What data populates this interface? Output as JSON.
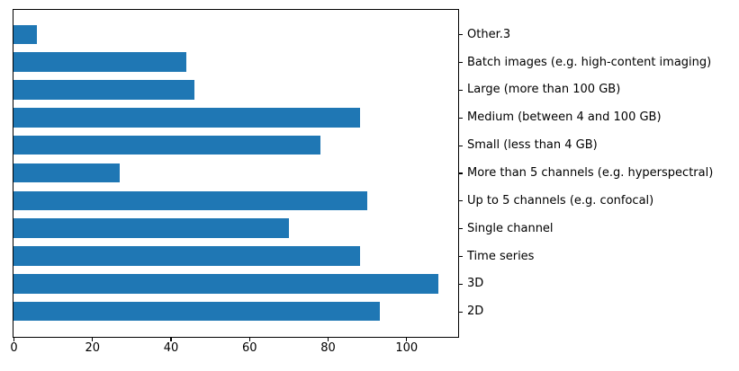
{
  "figure": {
    "background_color": "#ffffff",
    "spine_color": "#000000",
    "tick_color": "#000000",
    "text_color": "#000000"
  },
  "chart_data": {
    "type": "bar",
    "orientation": "horizontal",
    "order": "top-to-bottom",
    "categories": [
      "Other.3",
      "Batch images (e.g. high-content imaging)",
      "Large (more than 100 GB)",
      "Medium (between 4 and 100 GB)",
      "Small (less than 4 GB)",
      "More than 5 channels (e.g. hyperspectral)",
      "Up to 5 channels (e.g. confocal)",
      "Single channel",
      "Time series",
      "3D",
      "2D"
    ],
    "values": [
      6,
      44,
      46,
      88,
      78,
      27,
      90,
      70,
      88,
      108,
      93
    ],
    "title": "",
    "xlabel": "",
    "ylabel": "",
    "xticks": [
      0,
      20,
      40,
      60,
      80,
      100
    ],
    "xlim": [
      0,
      113
    ],
    "bar_color": "#1f77b4",
    "bar_height_fraction": 0.7,
    "grid": false,
    "legend": null,
    "y_labels_side": "right"
  }
}
